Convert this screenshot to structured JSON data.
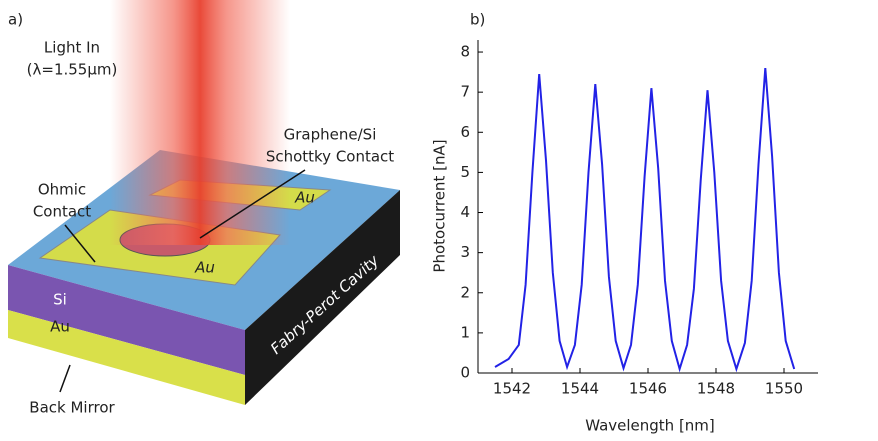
{
  "panel_labels": [
    "a)",
    "b)"
  ],
  "diagram": {
    "light_in": "Light In",
    "wavelength": "(λ=1.55μm)",
    "schottky": [
      "Graphene/Si",
      "Schottky Contact"
    ],
    "ohmic": [
      "Ohmic",
      "Contact"
    ],
    "pads": [
      "Au",
      "Au"
    ],
    "layers": [
      "Si",
      "Au"
    ],
    "cavity": "Fabry-Perot Cavity",
    "mirror": "Back Mirror"
  },
  "chart_data": {
    "type": "line",
    "xlabel": "Wavelength [nm]",
    "ylabel": "Photocurrent [nA]",
    "xlim": [
      1541,
      1551
    ],
    "ylim": [
      0,
      8.3
    ],
    "xticks": [
      1542,
      1544,
      1546,
      1548,
      1550
    ],
    "yticks": [
      0,
      1,
      2,
      3,
      4,
      5,
      6,
      7,
      8
    ],
    "grid": false,
    "series": [
      {
        "name": "Photocurrent",
        "color": "#2222e6",
        "x": [
          1541.5,
          1541.9,
          1542.2,
          1542.4,
          1542.6,
          1542.8,
          1543.0,
          1543.2,
          1543.4,
          1543.62,
          1543.85,
          1544.05,
          1544.25,
          1544.45,
          1544.65,
          1544.85,
          1545.05,
          1545.28,
          1545.5,
          1545.7,
          1545.9,
          1546.1,
          1546.3,
          1546.5,
          1546.7,
          1546.93,
          1547.15,
          1547.35,
          1547.55,
          1547.75,
          1547.95,
          1548.15,
          1548.35,
          1548.6,
          1548.85,
          1549.05,
          1549.25,
          1549.45,
          1549.65,
          1549.85,
          1550.05,
          1550.3
        ],
        "values": [
          0.15,
          0.35,
          0.7,
          2.2,
          5.0,
          7.45,
          5.3,
          2.5,
          0.8,
          0.15,
          0.7,
          2.2,
          5.0,
          7.2,
          5.2,
          2.4,
          0.8,
          0.12,
          0.7,
          2.2,
          4.9,
          7.1,
          5.1,
          2.3,
          0.8,
          0.1,
          0.7,
          2.1,
          4.8,
          7.05,
          5.0,
          2.3,
          0.8,
          0.1,
          0.75,
          2.3,
          5.2,
          7.6,
          5.4,
          2.5,
          0.8,
          0.1
        ]
      }
    ]
  }
}
